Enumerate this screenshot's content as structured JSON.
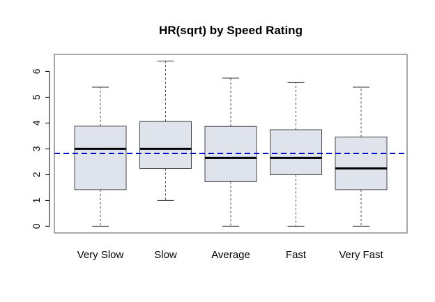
{
  "chart_data": {
    "type": "boxplot",
    "title": "HR(sqrt) by Speed Rating",
    "xlabel": "",
    "ylabel": "",
    "categories": [
      "Very Slow",
      "Slow",
      "Average",
      "Fast",
      "Very Fast"
    ],
    "boxes": [
      {
        "min": 0.0,
        "q1": 1.42,
        "median": 3.0,
        "q3": 3.88,
        "max": 5.39
      },
      {
        "min": 1.0,
        "q1": 2.24,
        "median": 3.0,
        "q3": 4.06,
        "max": 6.4
      },
      {
        "min": 0.0,
        "q1": 1.73,
        "median": 2.65,
        "q3": 3.87,
        "max": 5.74
      },
      {
        "min": 0.0,
        "q1": 2.0,
        "median": 2.65,
        "q3": 3.74,
        "max": 5.57
      },
      {
        "min": 0.0,
        "q1": 1.42,
        "median": 2.24,
        "q3": 3.46,
        "max": 5.39
      }
    ],
    "reference_line": {
      "value": 2.82,
      "style": "dashed",
      "color": "#0000cc"
    },
    "yticks": [
      "0",
      "1",
      "2",
      "3",
      "4",
      "5",
      "6"
    ],
    "ylim": [
      -0.26,
      6.66
    ],
    "box_fill": "#dee3ec",
    "grid": false,
    "legend": "none"
  }
}
